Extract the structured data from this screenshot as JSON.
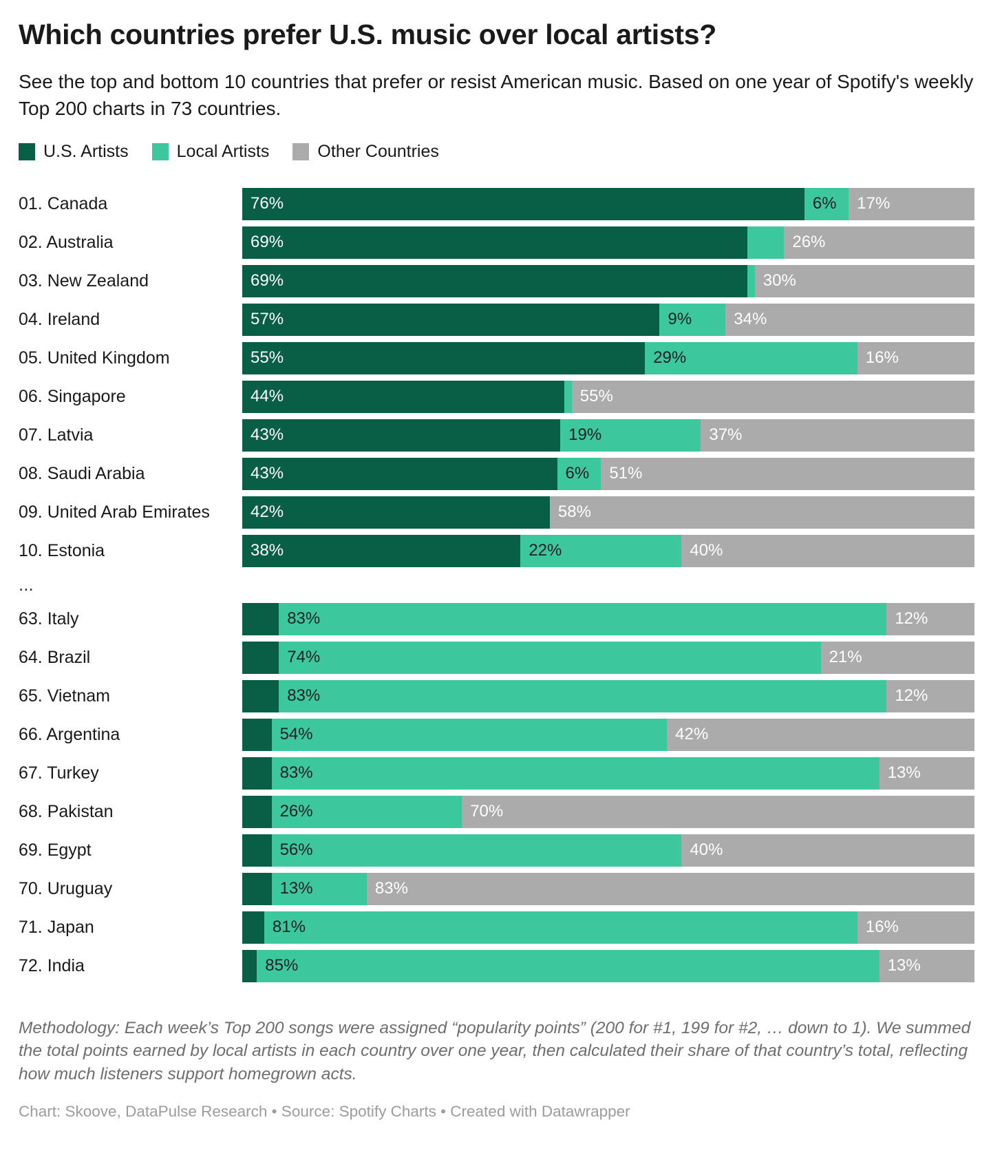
{
  "header": {
    "title": "Which countries prefer U.S. music over local artists?",
    "subtitle": "See the top and bottom 10 countries that prefer or resist American music. Based on one year of Spotify's weekly Top 200 charts in 73 countries."
  },
  "chart_data": {
    "type": "bar",
    "stacked": true,
    "orientation": "horizontal",
    "unit": "%",
    "xlim": [
      0,
      100
    ],
    "grid": false,
    "legend_position": "top",
    "legend": [
      {
        "key": "us",
        "label": "U.S. Artists",
        "color": "#095e46"
      },
      {
        "key": "local",
        "label": "Local Artists",
        "color": "#3cc79c"
      },
      {
        "key": "other",
        "label": "Other Countries",
        "color": "#ababab"
      }
    ],
    "colors": {
      "us": "#095e46",
      "local": "#3cc79c",
      "other": "#ababab"
    },
    "separator": "...",
    "sections": [
      {
        "rows": [
          {
            "label": "01. Canada",
            "us": 76,
            "local": 6,
            "other": 17,
            "us_label": "76%",
            "local_label": "6%",
            "other_label": "17%"
          },
          {
            "label": "02. Australia",
            "us": 69,
            "local": 5,
            "other": 26,
            "us_label": "69%",
            "local_label": null,
            "other_label": "26%"
          },
          {
            "label": "03. New Zealand",
            "us": 69,
            "local": 1,
            "other": 30,
            "us_label": "69%",
            "local_label": null,
            "other_label": "30%"
          },
          {
            "label": "04. Ireland",
            "us": 57,
            "local": 9,
            "other": 34,
            "us_label": "57%",
            "local_label": "9%",
            "other_label": "34%"
          },
          {
            "label": "05. United Kingdom",
            "us": 55,
            "local": 29,
            "other": 16,
            "us_label": "55%",
            "local_label": "29%",
            "other_label": "16%"
          },
          {
            "label": "06. Singapore",
            "us": 44,
            "local": 1,
            "other": 55,
            "us_label": "44%",
            "local_label": null,
            "other_label": "55%"
          },
          {
            "label": "07. Latvia",
            "us": 43,
            "local": 19,
            "other": 37,
            "us_label": "43%",
            "local_label": "19%",
            "other_label": "37%"
          },
          {
            "label": "08. Saudi Arabia",
            "us": 43,
            "local": 6,
            "other": 51,
            "us_label": "43%",
            "local_label": "6%",
            "other_label": "51%"
          },
          {
            "label": "09. United Arab Emirates",
            "us": 42,
            "local": 0,
            "other": 58,
            "us_label": "42%",
            "local_label": null,
            "other_label": "58%"
          },
          {
            "label": "10. Estonia",
            "us": 38,
            "local": 22,
            "other": 40,
            "us_label": "38%",
            "local_label": "22%",
            "other_label": "40%"
          }
        ]
      },
      {
        "rows": [
          {
            "label": "63. Italy",
            "us": 5,
            "local": 83,
            "other": 12,
            "us_label": null,
            "local_label": "83%",
            "other_label": "12%"
          },
          {
            "label": "64. Brazil",
            "us": 5,
            "local": 74,
            "other": 21,
            "us_label": null,
            "local_label": "74%",
            "other_label": "21%"
          },
          {
            "label": "65. Vietnam",
            "us": 5,
            "local": 83,
            "other": 12,
            "us_label": null,
            "local_label": "83%",
            "other_label": "12%"
          },
          {
            "label": "66. Argentina",
            "us": 4,
            "local": 54,
            "other": 42,
            "us_label": null,
            "local_label": "54%",
            "other_label": "42%"
          },
          {
            "label": "67. Turkey",
            "us": 4,
            "local": 83,
            "other": 13,
            "us_label": null,
            "local_label": "83%",
            "other_label": "13%"
          },
          {
            "label": "68. Pakistan",
            "us": 4,
            "local": 26,
            "other": 70,
            "us_label": null,
            "local_label": "26%",
            "other_label": "70%"
          },
          {
            "label": "69. Egypt",
            "us": 4,
            "local": 56,
            "other": 40,
            "us_label": null,
            "local_label": "56%",
            "other_label": "40%"
          },
          {
            "label": "70. Uruguay",
            "us": 4,
            "local": 13,
            "other": 83,
            "us_label": null,
            "local_label": "13%",
            "other_label": "83%"
          },
          {
            "label": "71. Japan",
            "us": 3,
            "local": 81,
            "other": 16,
            "us_label": null,
            "local_label": "81%",
            "other_label": "16%"
          },
          {
            "label": "72. India",
            "us": 2,
            "local": 85,
            "other": 13,
            "us_label": null,
            "local_label": "85%",
            "other_label": "13%"
          }
        ]
      }
    ]
  },
  "notes": {
    "methodology": "Methodology: Each week’s Top 200 songs were assigned “popularity points” (200 for #1, 199 for #2, … down to 1). We summed the total points earned by local artists in each country over one year, then calculated their share of that country’s total, reflecting how much listeners support homegrown acts.",
    "credit": "Chart: Skoove, DataPulse Research • Source: Spotify Charts • Created with Datawrapper"
  }
}
